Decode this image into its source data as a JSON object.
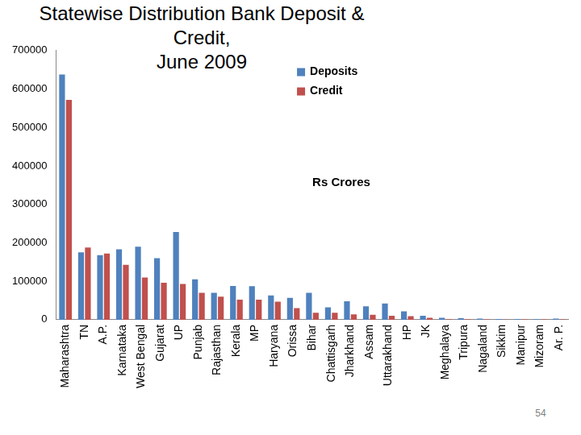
{
  "chart_data": {
    "type": "bar",
    "title": [
      "Statewise Distribution Bank Deposit & Credit,",
      "June 2009"
    ],
    "annotations": [
      "Rs Crores"
    ],
    "categories": [
      "Maharashtra",
      "TN",
      "A.P.",
      "Karnataka",
      "West Bengal",
      "Gujarat",
      "UP",
      "Punjab",
      "Rajasthan",
      "Kerala",
      "MP",
      "Haryana",
      "Orissa",
      "Bihar",
      "Chattisgarh",
      "Jharkhand",
      "Assam",
      "Uttarakhand",
      "HP",
      "JK",
      "Meghalaya",
      "Tripura",
      "Nagaland",
      "Sikkim",
      "Manipur",
      "Mizoram",
      "Ar. P."
    ],
    "series": [
      {
        "name": "Deposits",
        "color": "#4f81bd",
        "values": [
          638000,
          175000,
          168000,
          183000,
          190000,
          160000,
          228000,
          105000,
          70000,
          88000,
          87000,
          63000,
          57000,
          70000,
          32000,
          48000,
          35000,
          42000,
          22000,
          10000,
          5000,
          4000,
          3000,
          2000,
          2000,
          1500,
          3000
        ]
      },
      {
        "name": "Credit",
        "color": "#c0504d",
        "values": [
          572000,
          188000,
          172000,
          143000,
          110000,
          96000,
          93000,
          70000,
          60000,
          52000,
          52000,
          47000,
          30000,
          18000,
          18000,
          14000,
          13000,
          10000,
          9000,
          5000,
          1500,
          1500,
          1000,
          500,
          800,
          800,
          700
        ]
      }
    ],
    "ylim": [
      0,
      700000
    ],
    "yticks": [
      0,
      100000,
      200000,
      300000,
      400000,
      500000,
      600000,
      700000
    ],
    "grid": false,
    "legend": "upper center"
  },
  "page": {
    "number": "54"
  }
}
